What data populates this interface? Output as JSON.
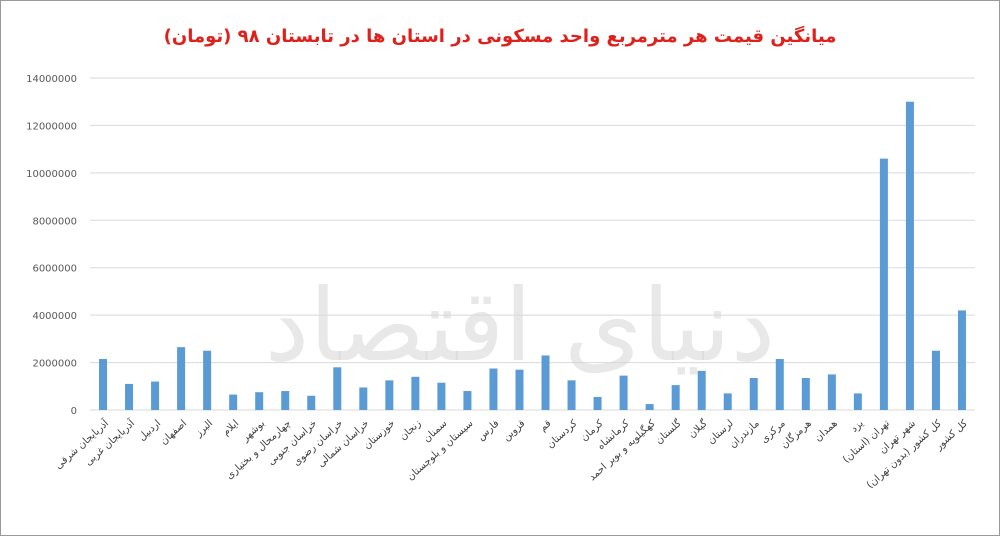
{
  "chart_data": {
    "type": "bar",
    "title": "میانگین قیمت هر مترمربع واحد مسکونی در استان ها در تابستان ۹۸ (تومان)",
    "xlabel": "",
    "ylabel": "",
    "ylim": [
      0,
      14000000
    ],
    "yticks": [
      0,
      2000000,
      4000000,
      6000000,
      8000000,
      10000000,
      12000000,
      14000000
    ],
    "ytick_labels": [
      "0",
      "2000000",
      "4000000",
      "6000000",
      "8000000",
      "10000000",
      "12000000",
      "14000000"
    ],
    "grid": true,
    "bar_color": "#5b9bd5",
    "categories": [
      "آذربایجان شرقی",
      "آذربایجان غربی",
      "اردبیل",
      "اصفهان",
      "البرز",
      "ایلام",
      "بوشهر",
      "چهارمحال و بختیاری",
      "خراسان جنوبی",
      "خراسان رضوی",
      "خراسان شمالی",
      "خوزستان",
      "زنجان",
      "سمنان",
      "سیستان و بلوچستان",
      "فارس",
      "قزوین",
      "قم",
      "کردستان",
      "کرمان",
      "کرمانشاه",
      "کهگیلویه و بویر احمد",
      "گلستان",
      "گیلان",
      "لرستان",
      "مازندران",
      "مرکزی",
      "هرمزگان",
      "همدان",
      "یزد",
      "تهران (استان)",
      "شهر تهران",
      "کل کشور (بدون تهران)",
      "کل کشور"
    ],
    "values": [
      2150000,
      1100000,
      1200000,
      2650000,
      2500000,
      650000,
      750000,
      800000,
      600000,
      1800000,
      950000,
      1250000,
      1400000,
      1150000,
      800000,
      1750000,
      1700000,
      2300000,
      1250000,
      550000,
      1450000,
      250000,
      1050000,
      1650000,
      700000,
      1350000,
      2150000,
      1350000,
      1500000,
      700000,
      10600000,
      13000000,
      2500000,
      4200000
    ]
  },
  "watermark_text": "دنیای اقتصاد"
}
